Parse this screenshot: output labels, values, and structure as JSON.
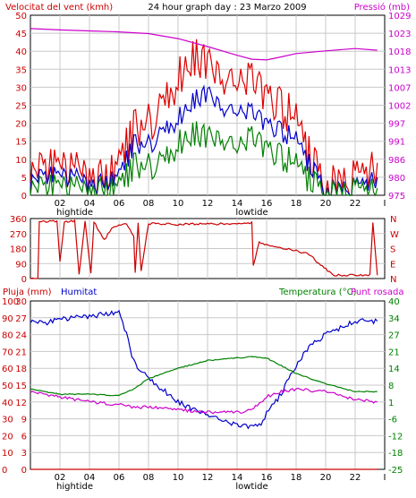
{
  "chart_data": [
    {
      "type": "line",
      "title": "24 hour graph day : 23 Marzo 2009",
      "left_axis_label": "Velocitat del vent (kmh)",
      "right_axis_label": "Pressió (mb)",
      "left_ticks": [
        0,
        5,
        10,
        15,
        20,
        25,
        30,
        35,
        40,
        45,
        50
      ],
      "right_ticks": [
        975,
        980,
        986,
        991,
        997,
        1002,
        1007,
        1013,
        1018,
        1023,
        1029
      ],
      "ylim_left": [
        0,
        50
      ],
      "ylim_right": [
        975,
        1029
      ],
      "x_ticks": [
        "02",
        "04",
        "06",
        "08",
        "10",
        "12",
        "14",
        "16",
        "18",
        "20",
        "22"
      ],
      "x_notes": [
        {
          "at": 3,
          "text": "hightide"
        },
        {
          "at": 15,
          "text": "lowtide"
        }
      ],
      "colors": {
        "gust": "#e00000",
        "average": "#0000cc",
        "low": "#008000",
        "pressure": "#cc00cc"
      },
      "series": [
        {
          "key": "gust",
          "hours": [
            0,
            1,
            2,
            3,
            4,
            5,
            6,
            7,
            8,
            9,
            10,
            11,
            12,
            13,
            14,
            15,
            16,
            17,
            18,
            19,
            20,
            21,
            22,
            23.5
          ],
          "values": [
            6,
            9,
            7,
            7,
            5,
            4,
            8,
            18,
            20,
            26,
            32,
            38,
            38,
            30,
            31,
            32,
            26,
            25,
            20,
            10,
            2,
            4,
            4,
            9
          ]
        },
        {
          "key": "average",
          "hours": [
            0,
            1,
            2,
            3,
            4,
            5,
            6,
            7,
            8,
            9,
            10,
            11,
            12,
            13,
            14,
            15,
            16,
            17,
            18,
            19,
            20,
            21,
            22,
            23.5
          ],
          "values": [
            4,
            6,
            5,
            5,
            3,
            3,
            5,
            14,
            14,
            18,
            21,
            26,
            29,
            23,
            23,
            23,
            19,
            18,
            15,
            8,
            1,
            2,
            2,
            5
          ]
        },
        {
          "key": "low",
          "hours": [
            0,
            1,
            2,
            3,
            4,
            5,
            6,
            7,
            8,
            9,
            10,
            11,
            12,
            13,
            14,
            15,
            16,
            17,
            18,
            19,
            20,
            21,
            22,
            23.5
          ],
          "values": [
            2,
            3,
            2,
            2,
            1,
            1,
            2,
            8,
            8,
            10,
            14,
            17,
            17,
            14,
            13,
            16,
            12,
            11,
            8,
            4,
            0,
            1,
            1,
            2
          ]
        },
        {
          "key": "pressure",
          "hours": [
            0,
            2,
            4,
            6,
            8,
            10,
            12,
            14,
            15,
            16,
            17,
            18,
            20,
            22,
            23.5
          ],
          "values": [
            1025,
            1024.6,
            1024.3,
            1024,
            1023.5,
            1022,
            1019.6,
            1017,
            1015.8,
            1015.6,
            1016.5,
            1017.5,
            1018.3,
            1019,
            1018.5
          ]
        }
      ]
    },
    {
      "type": "line",
      "title": "",
      "y_ticks": [
        0,
        90,
        180,
        270,
        360
      ],
      "ylim": [
        0,
        360
      ],
      "right_labels": [
        "N",
        "W",
        "S",
        "E",
        "N"
      ],
      "color": "#cc0000",
      "hours": [
        0,
        0.5,
        0.6,
        1.8,
        2,
        2.3,
        3,
        3.3,
        3.7,
        4.1,
        4.3,
        5,
        5.5,
        6,
        6.5,
        7,
        7.1,
        7.3,
        7.5,
        8,
        10,
        12,
        14,
        15,
        15.1,
        15.5,
        16,
        18,
        19,
        19.3,
        20.5,
        21,
        23,
        23.2,
        23.5
      ],
      "values": [
        0,
        0,
        340,
        345,
        100,
        340,
        345,
        20,
        340,
        30,
        340,
        230,
        300,
        320,
        330,
        250,
        30,
        330,
        40,
        330,
        325,
        330,
        325,
        335,
        80,
        220,
        200,
        170,
        140,
        110,
        20,
        20,
        20,
        340,
        20
      ]
    },
    {
      "type": "line",
      "left_axis_label_1": "Pluja (mm)",
      "left_axis_label_2": "Humitat",
      "right_axis_label_1": "Temperatura (°C)",
      "right_axis_label_2": "Punt rosada",
      "left_ticks_pluja": [
        0,
        10,
        20,
        30,
        40,
        50,
        60,
        70,
        80,
        90,
        100
      ],
      "left_ticks_humitat": [
        0,
        3,
        6,
        9,
        12,
        15,
        18,
        21,
        24,
        27,
        30
      ],
      "right_ticks": [
        -25,
        -18,
        -12,
        -6,
        1,
        8,
        14,
        21,
        27,
        34,
        40
      ],
      "ylim_left": [
        0,
        100
      ],
      "ylim_right": [
        -25,
        40
      ],
      "x_ticks": [
        "02",
        "04",
        "06",
        "08",
        "10",
        "12",
        "14",
        "16",
        "18",
        "20",
        "22"
      ],
      "x_notes": [
        {
          "at": 3,
          "text": "hightide"
        },
        {
          "at": 15,
          "text": "lowtide"
        }
      ],
      "colors": {
        "rain": "#cc0000",
        "humidity": "#0000cc",
        "temperature": "#008000",
        "dewpoint": "#cc00cc"
      },
      "series": [
        {
          "key": "humidity",
          "hours": [
            0,
            1,
            2,
            3,
            4,
            5,
            6,
            6.5,
            7,
            8,
            9,
            10,
            11,
            12,
            13,
            14,
            15,
            15.5,
            16,
            17,
            18,
            19,
            20,
            21,
            22,
            23.5
          ],
          "values": [
            88,
            87,
            89,
            90,
            91,
            92,
            93,
            80,
            64,
            54,
            47,
            40,
            36,
            32,
            29,
            26,
            25,
            26,
            33,
            45,
            62,
            74,
            80,
            84,
            88,
            88
          ]
        },
        {
          "key": "temperature",
          "hours": [
            0,
            2,
            4,
            6,
            7,
            8,
            10,
            12,
            14,
            15,
            16,
            17,
            18,
            20,
            22,
            23.5
          ],
          "values": [
            6,
            4,
            4,
            3.5,
            6,
            10,
            14,
            17,
            18,
            18.5,
            18,
            15,
            12,
            8,
            5,
            5
          ]
        },
        {
          "key": "dewpoint",
          "hours": [
            0,
            2,
            4,
            6,
            7,
            8,
            10,
            12,
            14,
            15,
            16,
            17,
            18,
            20,
            22,
            23.5
          ],
          "values": [
            5,
            3,
            1,
            0,
            -1,
            -1,
            -2,
            -3,
            -3,
            -2,
            3,
            5,
            6,
            5,
            2,
            1
          ]
        },
        {
          "key": "rain",
          "hours": [
            0,
            23.5
          ],
          "values": [
            0,
            0
          ]
        }
      ]
    }
  ]
}
